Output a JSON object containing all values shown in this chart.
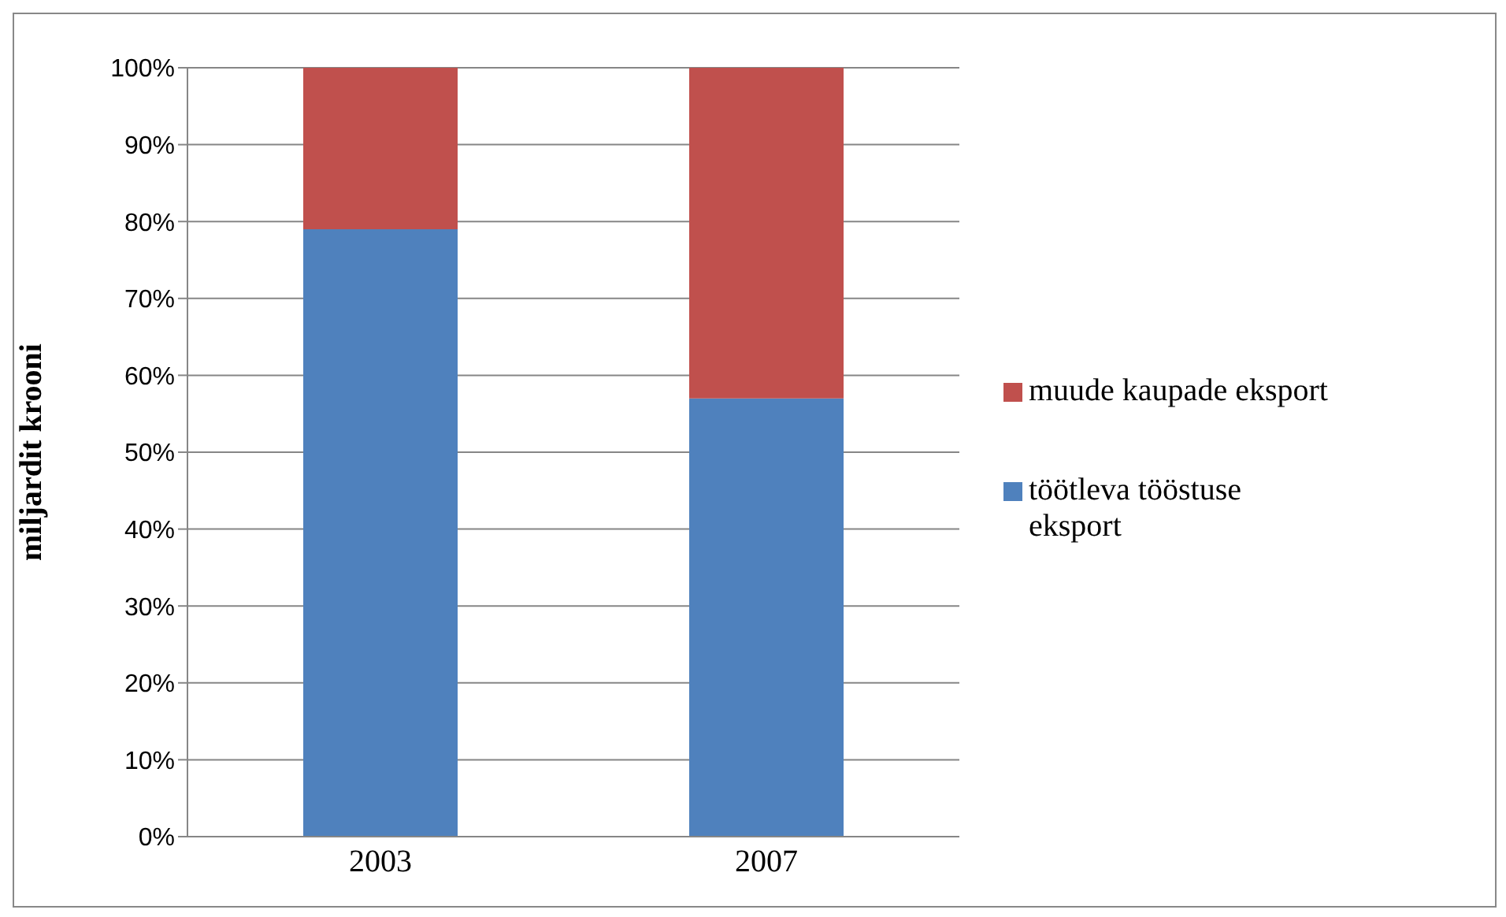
{
  "chart_data": {
    "type": "bar",
    "stacked": true,
    "ylabel": "miljardit krooni",
    "categories": [
      "2003",
      "2007"
    ],
    "series": [
      {
        "name": "töötleva tööstuse eksport",
        "color": "#4f81bd",
        "values": [
          79,
          57
        ]
      },
      {
        "name": "muude kaupade eksport",
        "color": "#c0504d",
        "values": [
          21,
          43
        ]
      }
    ],
    "ylim": [
      0,
      100
    ],
    "yticks": [
      {
        "value": 0,
        "label": "0%"
      },
      {
        "value": 10,
        "label": "10%"
      },
      {
        "value": 20,
        "label": "20%"
      },
      {
        "value": 30,
        "label": "30%"
      },
      {
        "value": 40,
        "label": "40%"
      },
      {
        "value": 50,
        "label": "50%"
      },
      {
        "value": 60,
        "label": "60%"
      },
      {
        "value": 70,
        "label": "70%"
      },
      {
        "value": 80,
        "label": "80%"
      },
      {
        "value": 90,
        "label": "90%"
      },
      {
        "value": 100,
        "label": "100%"
      }
    ],
    "grid": "y",
    "legend": "right"
  }
}
